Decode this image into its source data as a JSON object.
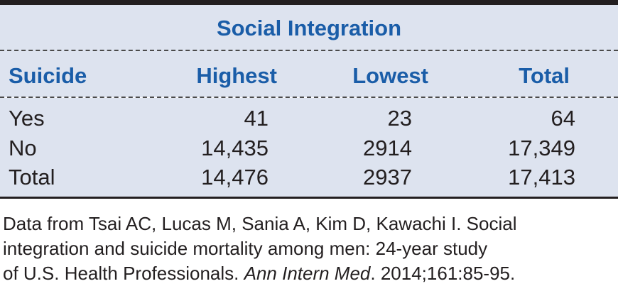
{
  "table": {
    "group_title": "Social Integration",
    "columns": [
      "Suicide",
      "Highest",
      "Lowest",
      "Total"
    ],
    "rows": [
      [
        "Yes",
        "41",
        "23",
        "64"
      ],
      [
        "No",
        "14,435",
        "2914",
        "17,349"
      ],
      [
        "Total",
        "14,476",
        "2937",
        "17,413"
      ]
    ]
  },
  "source": {
    "line1": "Data from Tsai AC, Lucas M, Sania A, Kim D, Kawachi I. Social",
    "line2": "integration and suicide mortality among men: 24-year study",
    "line3_pre": "of U.S. Health Professionals. ",
    "line3_journal": "Ann Intern Med",
    "line3_post": ". 2014;161:85-95."
  }
}
